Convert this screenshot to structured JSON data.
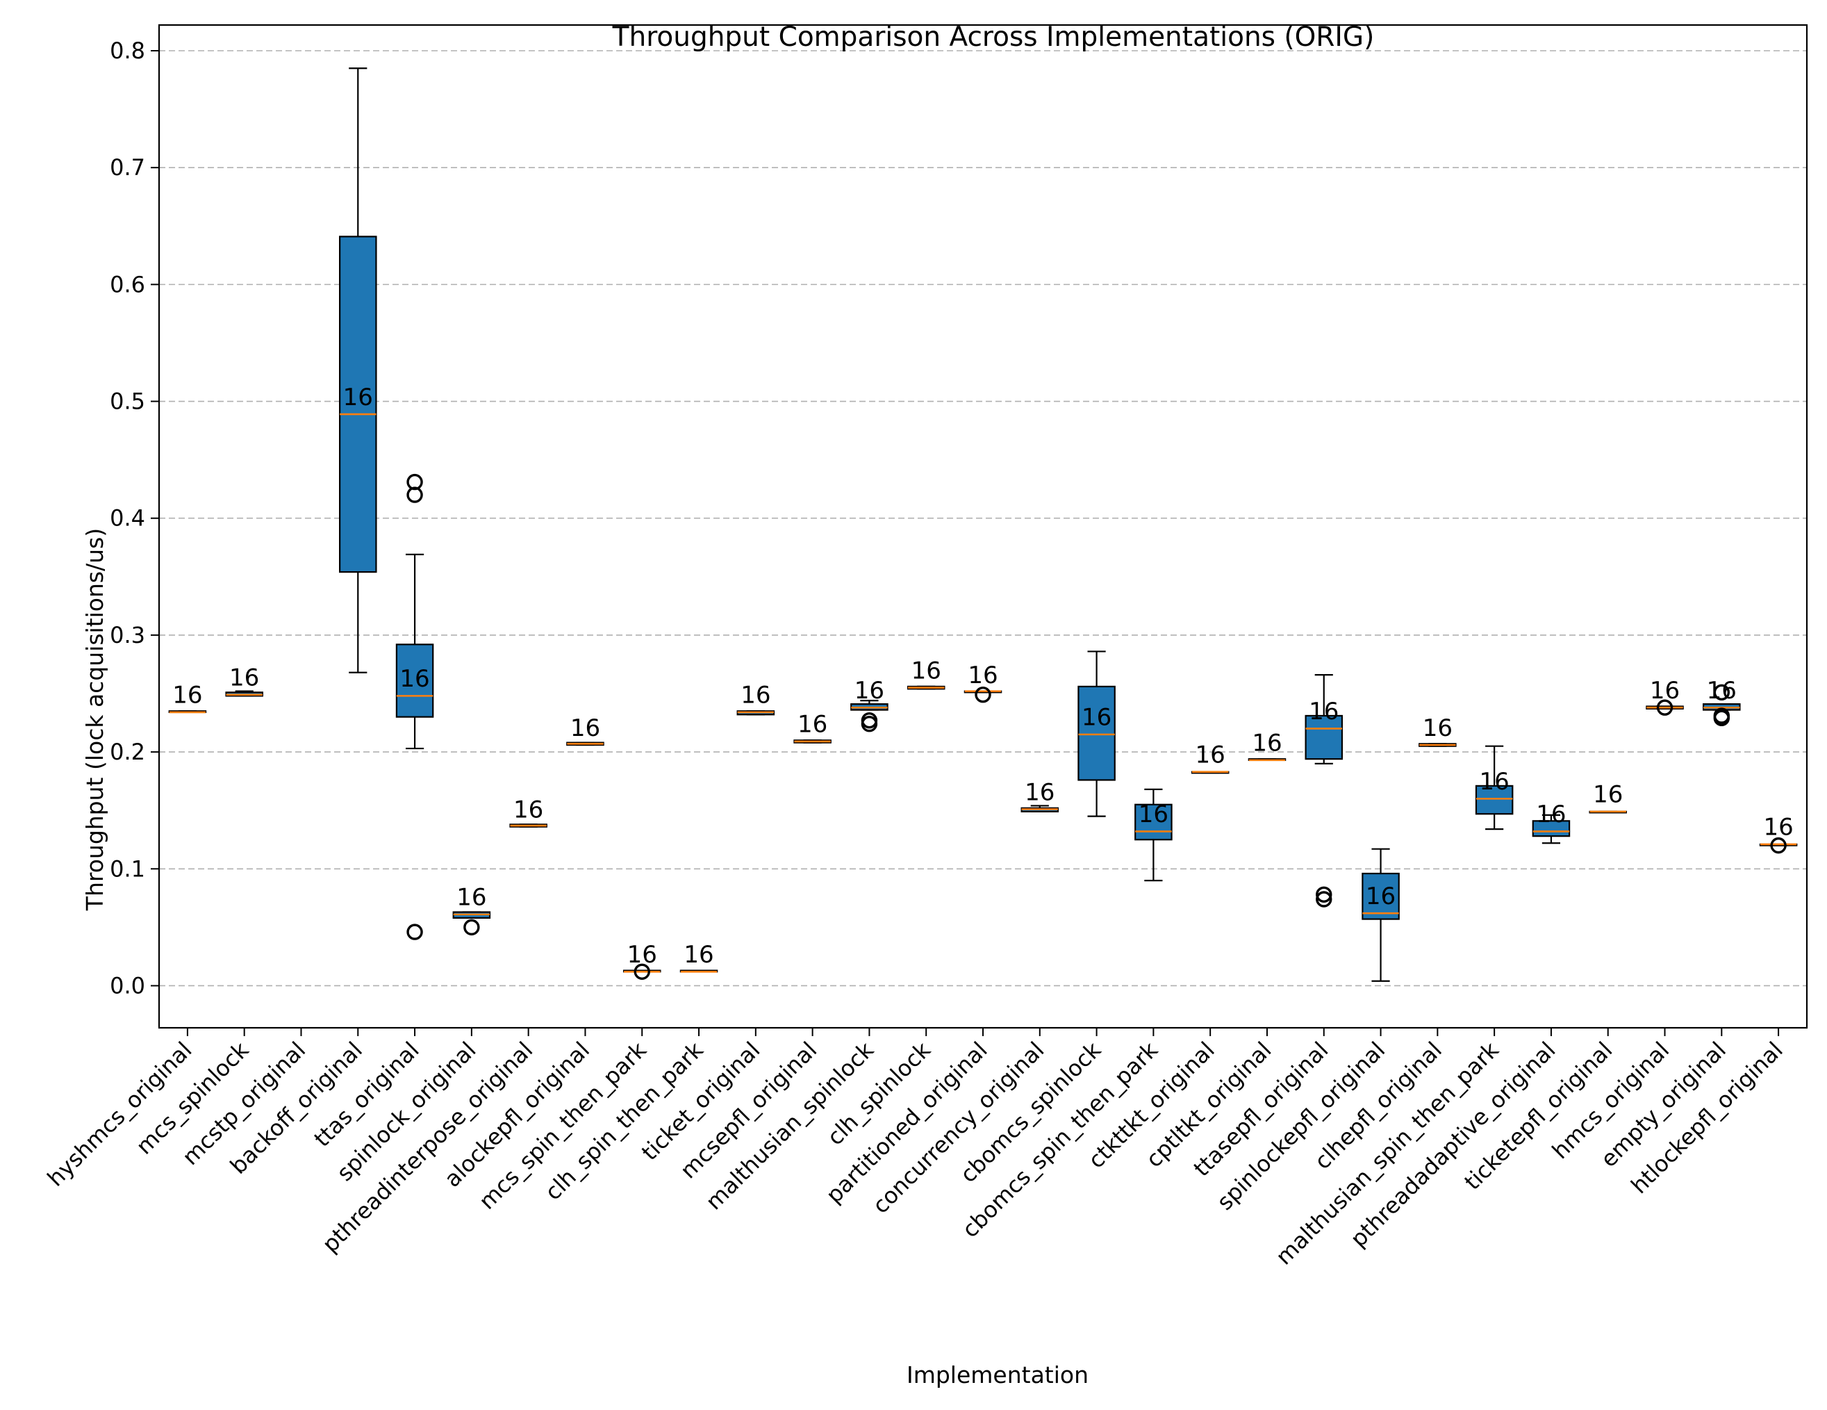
{
  "chart_data": {
    "type": "box",
    "title": "Throughput Comparison Across Implementations (ORIG)",
    "xlabel": "Implementation",
    "ylabel": "Throughput (lock acquisitions/us)",
    "ylim": [
      -0.036,
      0.822
    ],
    "yticks": [
      0.0,
      0.1,
      0.2,
      0.3,
      0.4,
      0.5,
      0.6,
      0.7,
      0.8
    ],
    "ytick_labels": [
      "0.0",
      "0.1",
      "0.2",
      "0.3",
      "0.4",
      "0.5",
      "0.6",
      "0.7",
      "0.8"
    ],
    "grid": "y, dashed",
    "colors": {
      "box_fill": "#1f77b4",
      "median": "#ff7f0e",
      "edge": "#000000",
      "grid": "#b0b0b0"
    },
    "categories": [
      "hyshmcs_original",
      "mcs_spinlock",
      "mcstp_original",
      "backoff_original",
      "ttas_original",
      "spinlock_original",
      "pthreadinterpose_original",
      "alockepfl_original",
      "mcs_spin_then_park",
      "clh_spin_then_park",
      "ticket_original",
      "mcsepfl_original",
      "malthusian_spinlock",
      "clh_spinlock",
      "partitioned_original",
      "concurrency_original",
      "cbomcs_spinlock",
      "cbomcs_spin_then_park",
      "ctkttkt_original",
      "cptltkt_original",
      "ttasepfl_original",
      "spinlockepfl_original",
      "clhepfl_original",
      "malthusian_spin_then_park",
      "pthreadadaptive_original",
      "ticketepfl_original",
      "hmcs_original",
      "empty_original",
      "htlockepfl_original"
    ],
    "boxes": [
      {
        "whislo": 0.234,
        "q1": 0.234,
        "med": 0.234,
        "q3": 0.235,
        "whishi": 0.235,
        "fliers": [],
        "label": "16",
        "label_y": 0.249
      },
      {
        "whislo": 0.248,
        "q1": 0.248,
        "med": 0.249,
        "q3": 0.251,
        "whishi": 0.252,
        "fliers": [],
        "label": "16",
        "label_y": 0.264
      },
      null,
      {
        "whislo": 0.268,
        "q1": 0.354,
        "med": 0.489,
        "q3": 0.641,
        "whishi": 0.785,
        "fliers": [],
        "label": "16",
        "label_y": 0.504
      },
      {
        "whislo": 0.203,
        "q1": 0.23,
        "med": 0.248,
        "q3": 0.292,
        "whishi": 0.369,
        "fliers": [
          0.42,
          0.431,
          0.046
        ],
        "label": "16",
        "label_y": 0.263
      },
      {
        "whislo": 0.058,
        "q1": 0.058,
        "med": 0.061,
        "q3": 0.063,
        "whishi": 0.063,
        "fliers": [
          0.05
        ],
        "label": "16",
        "label_y": 0.076
      },
      {
        "whislo": 0.136,
        "q1": 0.136,
        "med": 0.137,
        "q3": 0.138,
        "whishi": 0.138,
        "fliers": [],
        "label": "16",
        "label_y": 0.151
      },
      {
        "whislo": 0.206,
        "q1": 0.206,
        "med": 0.207,
        "q3": 0.208,
        "whishi": 0.208,
        "fliers": [],
        "label": "16",
        "label_y": 0.221
      },
      {
        "whislo": 0.012,
        "q1": 0.012,
        "med": 0.012,
        "q3": 0.013,
        "whishi": 0.013,
        "fliers": [
          0.012
        ],
        "label": "16",
        "label_y": 0.027
      },
      {
        "whislo": 0.012,
        "q1": 0.012,
        "med": 0.012,
        "q3": 0.013,
        "whishi": 0.013,
        "fliers": [],
        "label": "16",
        "label_y": 0.027
      },
      {
        "whislo": 0.232,
        "q1": 0.232,
        "med": 0.234,
        "q3": 0.235,
        "whishi": 0.235,
        "fliers": [],
        "label": "16",
        "label_y": 0.249
      },
      {
        "whislo": 0.208,
        "q1": 0.208,
        "med": 0.209,
        "q3": 0.21,
        "whishi": 0.21,
        "fliers": [],
        "label": "16",
        "label_y": 0.224
      },
      {
        "whislo": 0.236,
        "q1": 0.236,
        "med": 0.238,
        "q3": 0.241,
        "whishi": 0.244,
        "fliers": [
          0.227,
          0.224
        ],
        "label": "16",
        "label_y": 0.253
      },
      {
        "whislo": 0.254,
        "q1": 0.254,
        "med": 0.255,
        "q3": 0.256,
        "whishi": 0.256,
        "fliers": [],
        "label": "16",
        "label_y": 0.27
      },
      {
        "whislo": 0.251,
        "q1": 0.251,
        "med": 0.252,
        "q3": 0.252,
        "whishi": 0.252,
        "fliers": [
          0.249
        ],
        "label": "16",
        "label_y": 0.266
      },
      {
        "whislo": 0.149,
        "q1": 0.149,
        "med": 0.151,
        "q3": 0.152,
        "whishi": 0.154,
        "fliers": [],
        "label": "16",
        "label_y": 0.166
      },
      {
        "whislo": 0.145,
        "q1": 0.176,
        "med": 0.215,
        "q3": 0.256,
        "whishi": 0.286,
        "fliers": [],
        "label": "16",
        "label_y": 0.23
      },
      {
        "whislo": 0.09,
        "q1": 0.125,
        "med": 0.132,
        "q3": 0.155,
        "whishi": 0.168,
        "fliers": [],
        "label": "16",
        "label_y": 0.147
      },
      {
        "whislo": 0.182,
        "q1": 0.182,
        "med": 0.183,
        "q3": 0.183,
        "whishi": 0.183,
        "fliers": [],
        "label": "16",
        "label_y": 0.198
      },
      {
        "whislo": 0.193,
        "q1": 0.193,
        "med": 0.193,
        "q3": 0.194,
        "whishi": 0.194,
        "fliers": [],
        "label": "16",
        "label_y": 0.208
      },
      {
        "whislo": 0.19,
        "q1": 0.194,
        "med": 0.22,
        "q3": 0.231,
        "whishi": 0.266,
        "fliers": [
          0.078,
          0.074
        ],
        "label": "16",
        "label_y": 0.235
      },
      {
        "whislo": 0.004,
        "q1": 0.057,
        "med": 0.062,
        "q3": 0.096,
        "whishi": 0.117,
        "fliers": [],
        "label": "16",
        "label_y": 0.077
      },
      {
        "whislo": 0.205,
        "q1": 0.205,
        "med": 0.206,
        "q3": 0.207,
        "whishi": 0.207,
        "fliers": [],
        "label": "16",
        "label_y": 0.221
      },
      {
        "whislo": 0.134,
        "q1": 0.147,
        "med": 0.16,
        "q3": 0.171,
        "whishi": 0.205,
        "fliers": [],
        "label": "16",
        "label_y": 0.175
      },
      {
        "whislo": 0.122,
        "q1": 0.128,
        "med": 0.132,
        "q3": 0.141,
        "whishi": 0.146,
        "fliers": [],
        "label": "16",
        "label_y": 0.147
      },
      {
        "whislo": 0.149,
        "q1": 0.149,
        "med": 0.149,
        "q3": 0.149,
        "whishi": 0.149,
        "fliers": [],
        "label": "16",
        "label_y": 0.164
      },
      {
        "whislo": 0.237,
        "q1": 0.237,
        "med": 0.238,
        "q3": 0.239,
        "whishi": 0.239,
        "fliers": [
          0.238
        ],
        "label": "16",
        "label_y": 0.253
      },
      {
        "whislo": 0.236,
        "q1": 0.236,
        "med": 0.238,
        "q3": 0.241,
        "whishi": 0.241,
        "fliers": [
          0.251,
          0.229,
          0.231
        ],
        "label": "16",
        "label_y": 0.253
      },
      {
        "whislo": 0.12,
        "q1": 0.12,
        "med": 0.121,
        "q3": 0.121,
        "whishi": 0.121,
        "fliers": [
          0.12
        ],
        "label": "16",
        "label_y": 0.136
      }
    ]
  }
}
